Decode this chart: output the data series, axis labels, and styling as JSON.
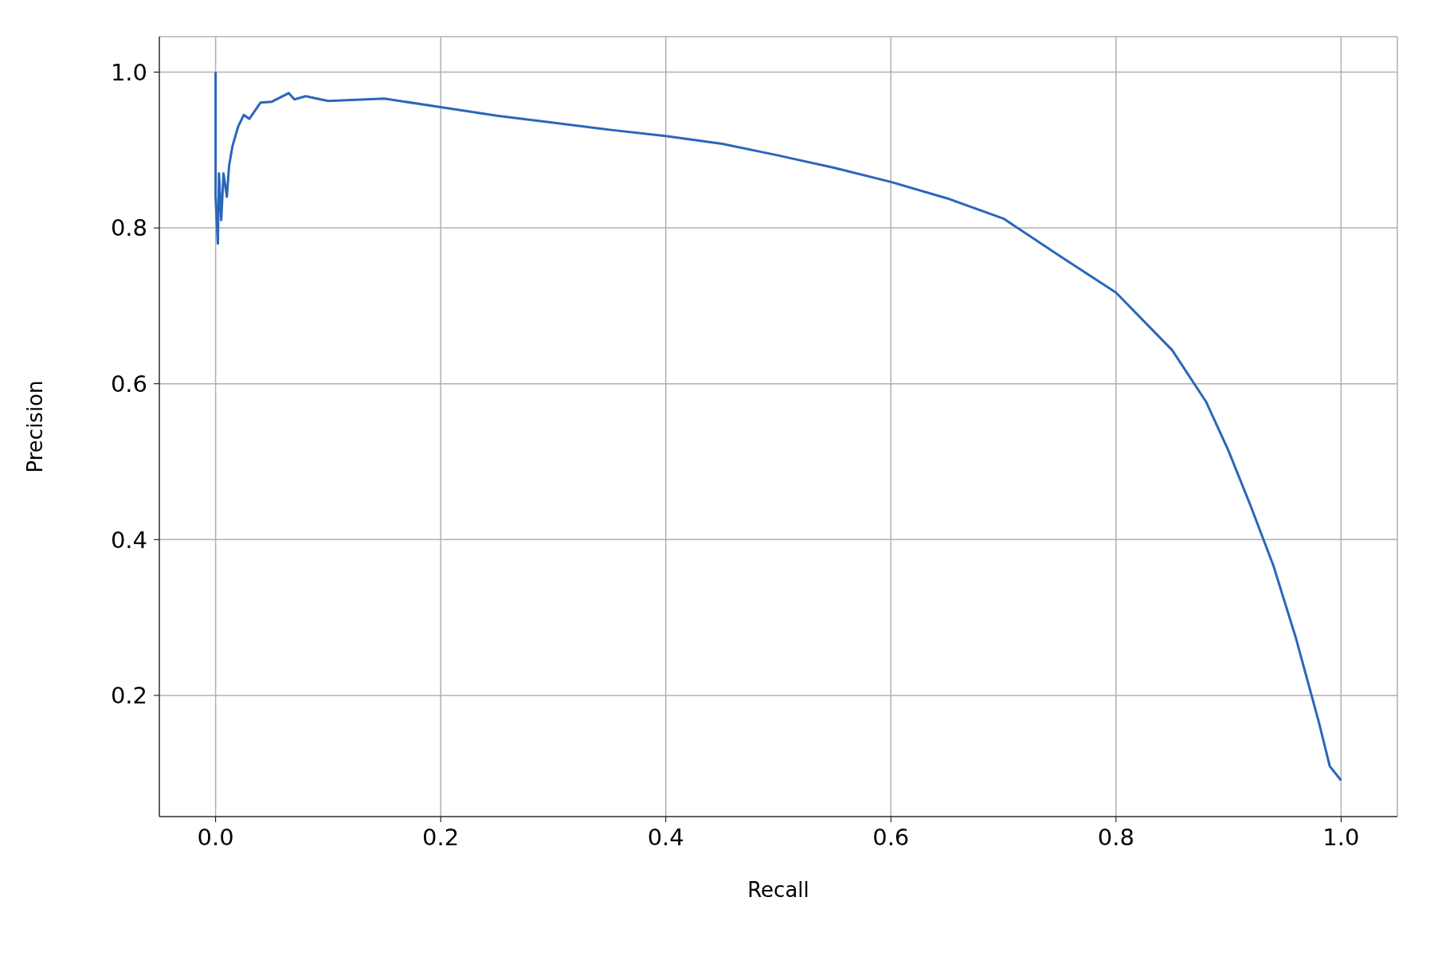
{
  "chart_data": {
    "type": "line",
    "xlabel": "Recall",
    "ylabel": "Precision",
    "xlim": [
      -0.05,
      1.05
    ],
    "ylim": [
      0.0445,
      1.0455
    ],
    "xticks": [
      {
        "value": 0,
        "label": "0.0"
      },
      0.2,
      0.4,
      0.6,
      0.8,
      {
        "value": 1,
        "label": "1.0"
      }
    ],
    "yticks": [
      0.2,
      0.4,
      0.6,
      0.8,
      {
        "value": 1,
        "label": "1.0"
      }
    ],
    "grid": true,
    "marker": "none",
    "line_style": "solid",
    "series": [
      {
        "color": "#2b66b9",
        "x": [
          0,
          0,
          0.002,
          0.003,
          0.005,
          0.007,
          0.01,
          0.012,
          0.015,
          0.02,
          0.025,
          0.03,
          0.04,
          0.05,
          0.065,
          0.07,
          0.08,
          0.1,
          0.15,
          0.2,
          0.25,
          0.3,
          0.35,
          0.4,
          0.45,
          0.5,
          0.55,
          0.6,
          0.65,
          0.7,
          0.75,
          0.8,
          0.85,
          0.88,
          0.9,
          0.92,
          0.94,
          0.96,
          0.98,
          0.99,
          1.0
        ],
        "values": [
          1.0,
          0.84,
          0.78,
          0.87,
          0.81,
          0.87,
          0.84,
          0.88,
          0.905,
          0.93,
          0.945,
          0.94,
          0.961,
          0.962,
          0.973,
          0.965,
          0.969,
          0.963,
          0.966,
          0.955,
          0.944,
          0.935,
          0.926,
          0.918,
          0.908,
          0.893,
          0.877,
          0.859,
          0.838,
          0.812,
          0.764,
          0.717,
          0.643,
          0.577,
          0.514,
          0.442,
          0.366,
          0.273,
          0.167,
          0.109,
          0.091
        ]
      }
    ]
  }
}
